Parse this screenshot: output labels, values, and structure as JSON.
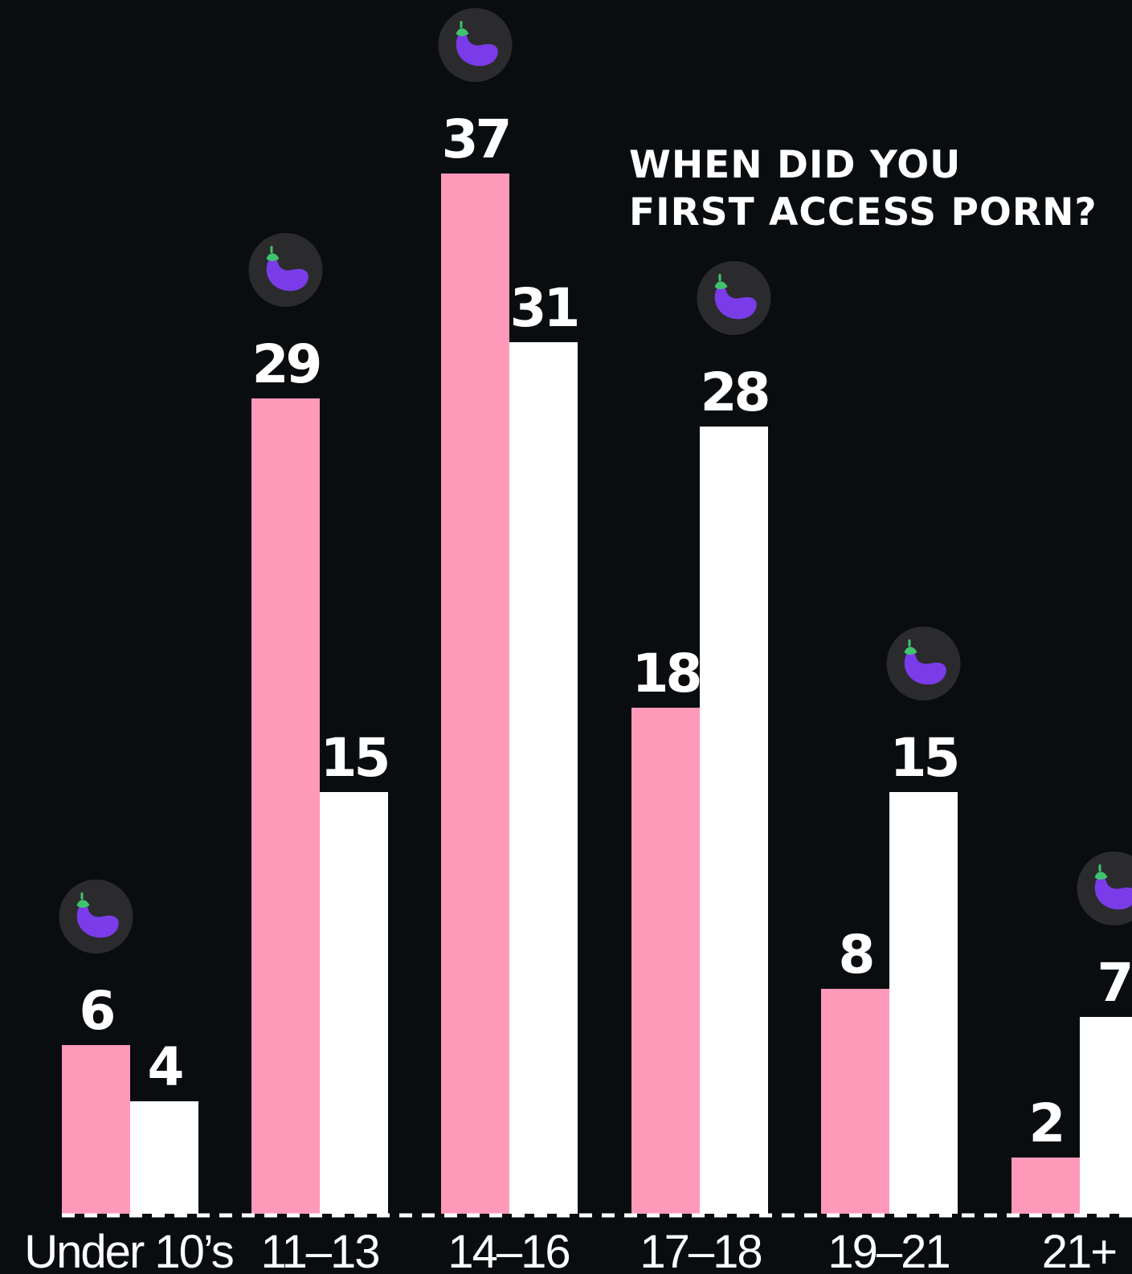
{
  "chart_data": {
    "type": "bar",
    "title": "WHEN DID YOU FIRST ACCESS PORN?",
    "title_lines": [
      "WHEN DID YOU",
      "FIRST ACCESS PORN?"
    ],
    "categories": [
      "Under 10’s",
      "11–13",
      "14–16",
      "17–18",
      "19–21",
      "21+"
    ],
    "series": [
      {
        "values": [
          6,
          29,
          37,
          18,
          8,
          2
        ],
        "color": "#ff99b9"
      },
      {
        "values": [
          4,
          15,
          31,
          28,
          15,
          7
        ],
        "color": "#ffffff"
      }
    ],
    "highlight_icon": "eggplant-icon",
    "ylim": [
      0,
      37
    ],
    "grid": false,
    "legend": "none",
    "baseline_style": "dashed",
    "colors": {
      "background": "#0a0d10",
      "text": "#ffffff",
      "icon_circle": "#2b2b2e",
      "eggplant_body": "#7a3ce8",
      "eggplant_leaf": "#3ec46d"
    }
  }
}
